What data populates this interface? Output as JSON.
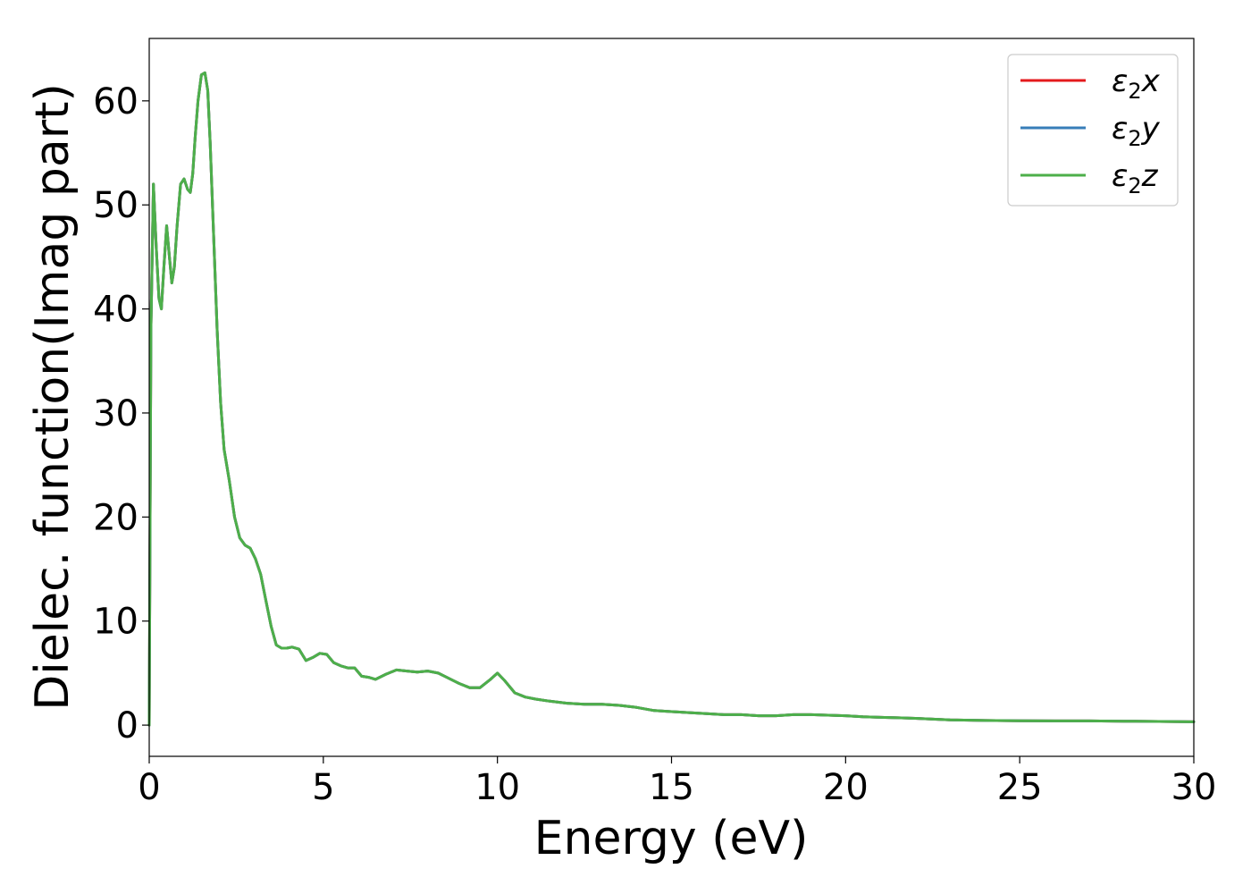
{
  "chart_data": {
    "type": "line",
    "title": "",
    "xlabel": "Energy (eV)",
    "ylabel": "Dielec. function(Imag part)",
    "xlim": [
      0,
      30
    ],
    "ylim": [
      -3,
      66
    ],
    "xticks": [
      0,
      5,
      10,
      15,
      20,
      25,
      30
    ],
    "xtick_labels": [
      "0",
      "5",
      "10",
      "15",
      "20",
      "25",
      "30"
    ],
    "yticks": [
      0,
      10,
      20,
      30,
      40,
      50,
      60
    ],
    "ytick_labels": [
      "0",
      "10",
      "20",
      "30",
      "40",
      "50",
      "60"
    ],
    "grid": false,
    "legend_position": "top-right",
    "x": [
      0,
      0.05,
      0.12,
      0.2,
      0.28,
      0.35,
      0.42,
      0.5,
      0.58,
      0.65,
      0.72,
      0.8,
      0.9,
      1.0,
      1.1,
      1.18,
      1.25,
      1.32,
      1.4,
      1.5,
      1.6,
      1.68,
      1.75,
      1.85,
      1.95,
      2.05,
      2.15,
      2.3,
      2.45,
      2.6,
      2.75,
      2.9,
      3.05,
      3.2,
      3.35,
      3.5,
      3.65,
      3.8,
      3.95,
      4.1,
      4.3,
      4.5,
      4.7,
      4.9,
      5.1,
      5.3,
      5.5,
      5.7,
      5.9,
      6.1,
      6.3,
      6.5,
      6.8,
      7.1,
      7.4,
      7.7,
      8.0,
      8.3,
      8.6,
      8.9,
      9.2,
      9.5,
      9.8,
      10.0,
      10.2,
      10.5,
      10.8,
      11.1,
      11.5,
      12.0,
      12.5,
      13.0,
      13.5,
      14.0,
      14.5,
      15.0,
      15.5,
      16.0,
      16.5,
      17.0,
      17.5,
      18.0,
      18.5,
      19.0,
      19.5,
      20.0,
      20.5,
      21.0,
      21.5,
      22.0,
      23.0,
      24.0,
      25.0,
      26.0,
      27.0,
      28.0,
      29.0,
      30.0
    ],
    "series": [
      {
        "name": "ε₂x",
        "label_main": "ε",
        "label_sub": "2",
        "label_var": "x",
        "color": "#e41a1c",
        "values": [
          0,
          38,
          52,
          46,
          41,
          40,
          44,
          48,
          45,
          42.5,
          44,
          48,
          52,
          52.5,
          51.5,
          51.2,
          53,
          56.5,
          60,
          62.5,
          62.7,
          61,
          56,
          47,
          38,
          31,
          26.5,
          23.5,
          20,
          18,
          17.3,
          17,
          16,
          14.5,
          12,
          9.5,
          7.7,
          7.4,
          7.4,
          7.5,
          7.3,
          6.2,
          6.5,
          6.9,
          6.8,
          6.0,
          5.7,
          5.5,
          5.5,
          4.7,
          4.6,
          4.4,
          4.9,
          5.3,
          5.2,
          5.1,
          5.2,
          5.0,
          4.5,
          4.0,
          3.6,
          3.6,
          4.4,
          5.0,
          4.3,
          3.1,
          2.7,
          2.5,
          2.3,
          2.1,
          2.0,
          2.0,
          1.9,
          1.7,
          1.4,
          1.3,
          1.2,
          1.1,
          1.0,
          1.0,
          0.9,
          0.9,
          1.0,
          1.0,
          0.95,
          0.9,
          0.8,
          0.75,
          0.7,
          0.65,
          0.5,
          0.45,
          0.42,
          0.4,
          0.4,
          0.38,
          0.35,
          0.32
        ]
      },
      {
        "name": "ε₂y",
        "label_main": "ε",
        "label_sub": "2",
        "label_var": "y",
        "color": "#377eb8",
        "values": [
          0,
          38,
          52,
          46,
          41,
          40,
          44,
          48,
          45,
          42.5,
          44,
          48,
          52,
          52.5,
          51.5,
          51.2,
          53,
          56.5,
          60,
          62.5,
          62.7,
          61,
          56,
          47,
          38,
          31,
          26.5,
          23.5,
          20,
          18,
          17.3,
          17,
          16,
          14.5,
          12,
          9.5,
          7.7,
          7.4,
          7.4,
          7.5,
          7.3,
          6.2,
          6.5,
          6.9,
          6.8,
          6.0,
          5.7,
          5.5,
          5.5,
          4.7,
          4.6,
          4.4,
          4.9,
          5.3,
          5.2,
          5.1,
          5.2,
          5.0,
          4.5,
          4.0,
          3.6,
          3.6,
          4.4,
          5.0,
          4.3,
          3.1,
          2.7,
          2.5,
          2.3,
          2.1,
          2.0,
          2.0,
          1.9,
          1.7,
          1.4,
          1.3,
          1.2,
          1.1,
          1.0,
          1.0,
          0.9,
          0.9,
          1.0,
          1.0,
          0.95,
          0.9,
          0.8,
          0.75,
          0.7,
          0.65,
          0.5,
          0.45,
          0.42,
          0.4,
          0.4,
          0.38,
          0.35,
          0.32
        ]
      },
      {
        "name": "ε₂z",
        "label_main": "ε",
        "label_sub": "2",
        "label_var": "z",
        "color": "#4daf4a",
        "values": [
          0,
          38,
          52,
          46,
          41,
          40,
          44,
          48,
          45,
          42.5,
          44,
          48,
          52,
          52.5,
          51.5,
          51.2,
          53,
          56.5,
          60,
          62.5,
          62.7,
          61,
          56,
          47,
          38,
          31,
          26.5,
          23.5,
          20,
          18,
          17.3,
          17,
          16,
          14.5,
          12,
          9.5,
          7.7,
          7.4,
          7.4,
          7.5,
          7.3,
          6.2,
          6.5,
          6.9,
          6.8,
          6.0,
          5.7,
          5.5,
          5.5,
          4.7,
          4.6,
          4.4,
          4.9,
          5.3,
          5.2,
          5.1,
          5.2,
          5.0,
          4.5,
          4.0,
          3.6,
          3.6,
          4.4,
          5.0,
          4.3,
          3.1,
          2.7,
          2.5,
          2.3,
          2.1,
          2.0,
          2.0,
          1.9,
          1.7,
          1.4,
          1.3,
          1.2,
          1.1,
          1.0,
          1.0,
          0.9,
          0.9,
          1.0,
          1.0,
          0.95,
          0.9,
          0.8,
          0.75,
          0.7,
          0.65,
          0.5,
          0.45,
          0.42,
          0.4,
          0.4,
          0.38,
          0.35,
          0.32
        ]
      }
    ]
  }
}
